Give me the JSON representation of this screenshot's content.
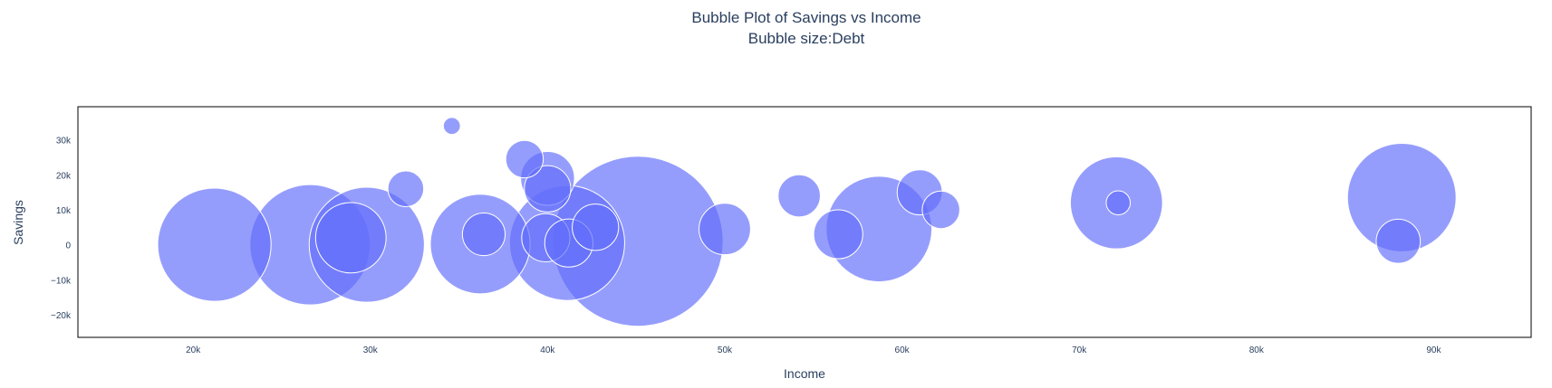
{
  "chart_data": {
    "type": "scatter",
    "title": "Bubble Plot of Savings vs Income",
    "subtitle": "Bubble size:Debt",
    "xlabel": "Income",
    "ylabel": "Savings",
    "xlim": [
      13500,
      95500
    ],
    "ylim": [
      -26500,
      39500
    ],
    "x_ticks": [
      20000,
      30000,
      40000,
      50000,
      60000,
      70000,
      80000,
      90000
    ],
    "x_tick_labels": [
      "20k",
      "30k",
      "40k",
      "50k",
      "60k",
      "70k",
      "80k",
      "90k"
    ],
    "y_ticks": [
      -20000,
      -10000,
      0,
      10000,
      20000,
      30000
    ],
    "y_tick_labels": [
      "−20k",
      "−10k",
      "0",
      "10k",
      "20k",
      "30k"
    ],
    "grid": false,
    "color": "#636efa",
    "size_variable": "Debt",
    "points": [
      {
        "x": 45100,
        "y": 1000,
        "size": 7000
      },
      {
        "x": 26600,
        "y": 0,
        "size": 3500
      },
      {
        "x": 29800,
        "y": 0,
        "size": 3200
      },
      {
        "x": 21200,
        "y": 0,
        "size": 3100
      },
      {
        "x": 41100,
        "y": 500,
        "size": 3200
      },
      {
        "x": 58700,
        "y": 4500,
        "size": 2700
      },
      {
        "x": 36200,
        "y": 200,
        "size": 2400
      },
      {
        "x": 88200,
        "y": 13500,
        "size": 2850
      },
      {
        "x": 72100,
        "y": 12000,
        "size": 2050
      },
      {
        "x": 28900,
        "y": 2000,
        "size": 1200
      },
      {
        "x": 50000,
        "y": 4500,
        "size": 640
      },
      {
        "x": 56400,
        "y": 3000,
        "size": 580
      },
      {
        "x": 40000,
        "y": 19000,
        "size": 700
      },
      {
        "x": 42700,
        "y": 5000,
        "size": 520
      },
      {
        "x": 39900,
        "y": 2000,
        "size": 560
      },
      {
        "x": 41200,
        "y": 500,
        "size": 560
      },
      {
        "x": 40000,
        "y": 16000,
        "size": 520
      },
      {
        "x": 61000,
        "y": 15000,
        "size": 490
      },
      {
        "x": 36400,
        "y": 3000,
        "size": 440
      },
      {
        "x": 88000,
        "y": 1000,
        "size": 470
      },
      {
        "x": 54200,
        "y": 14000,
        "size": 430
      },
      {
        "x": 38700,
        "y": 24500,
        "size": 340
      },
      {
        "x": 62200,
        "y": 10000,
        "size": 340
      },
      {
        "x": 32000,
        "y": 16000,
        "size": 310
      },
      {
        "x": 72200,
        "y": 12000,
        "size": 140
      },
      {
        "x": 34600,
        "y": 34000,
        "size": 70
      }
    ]
  }
}
